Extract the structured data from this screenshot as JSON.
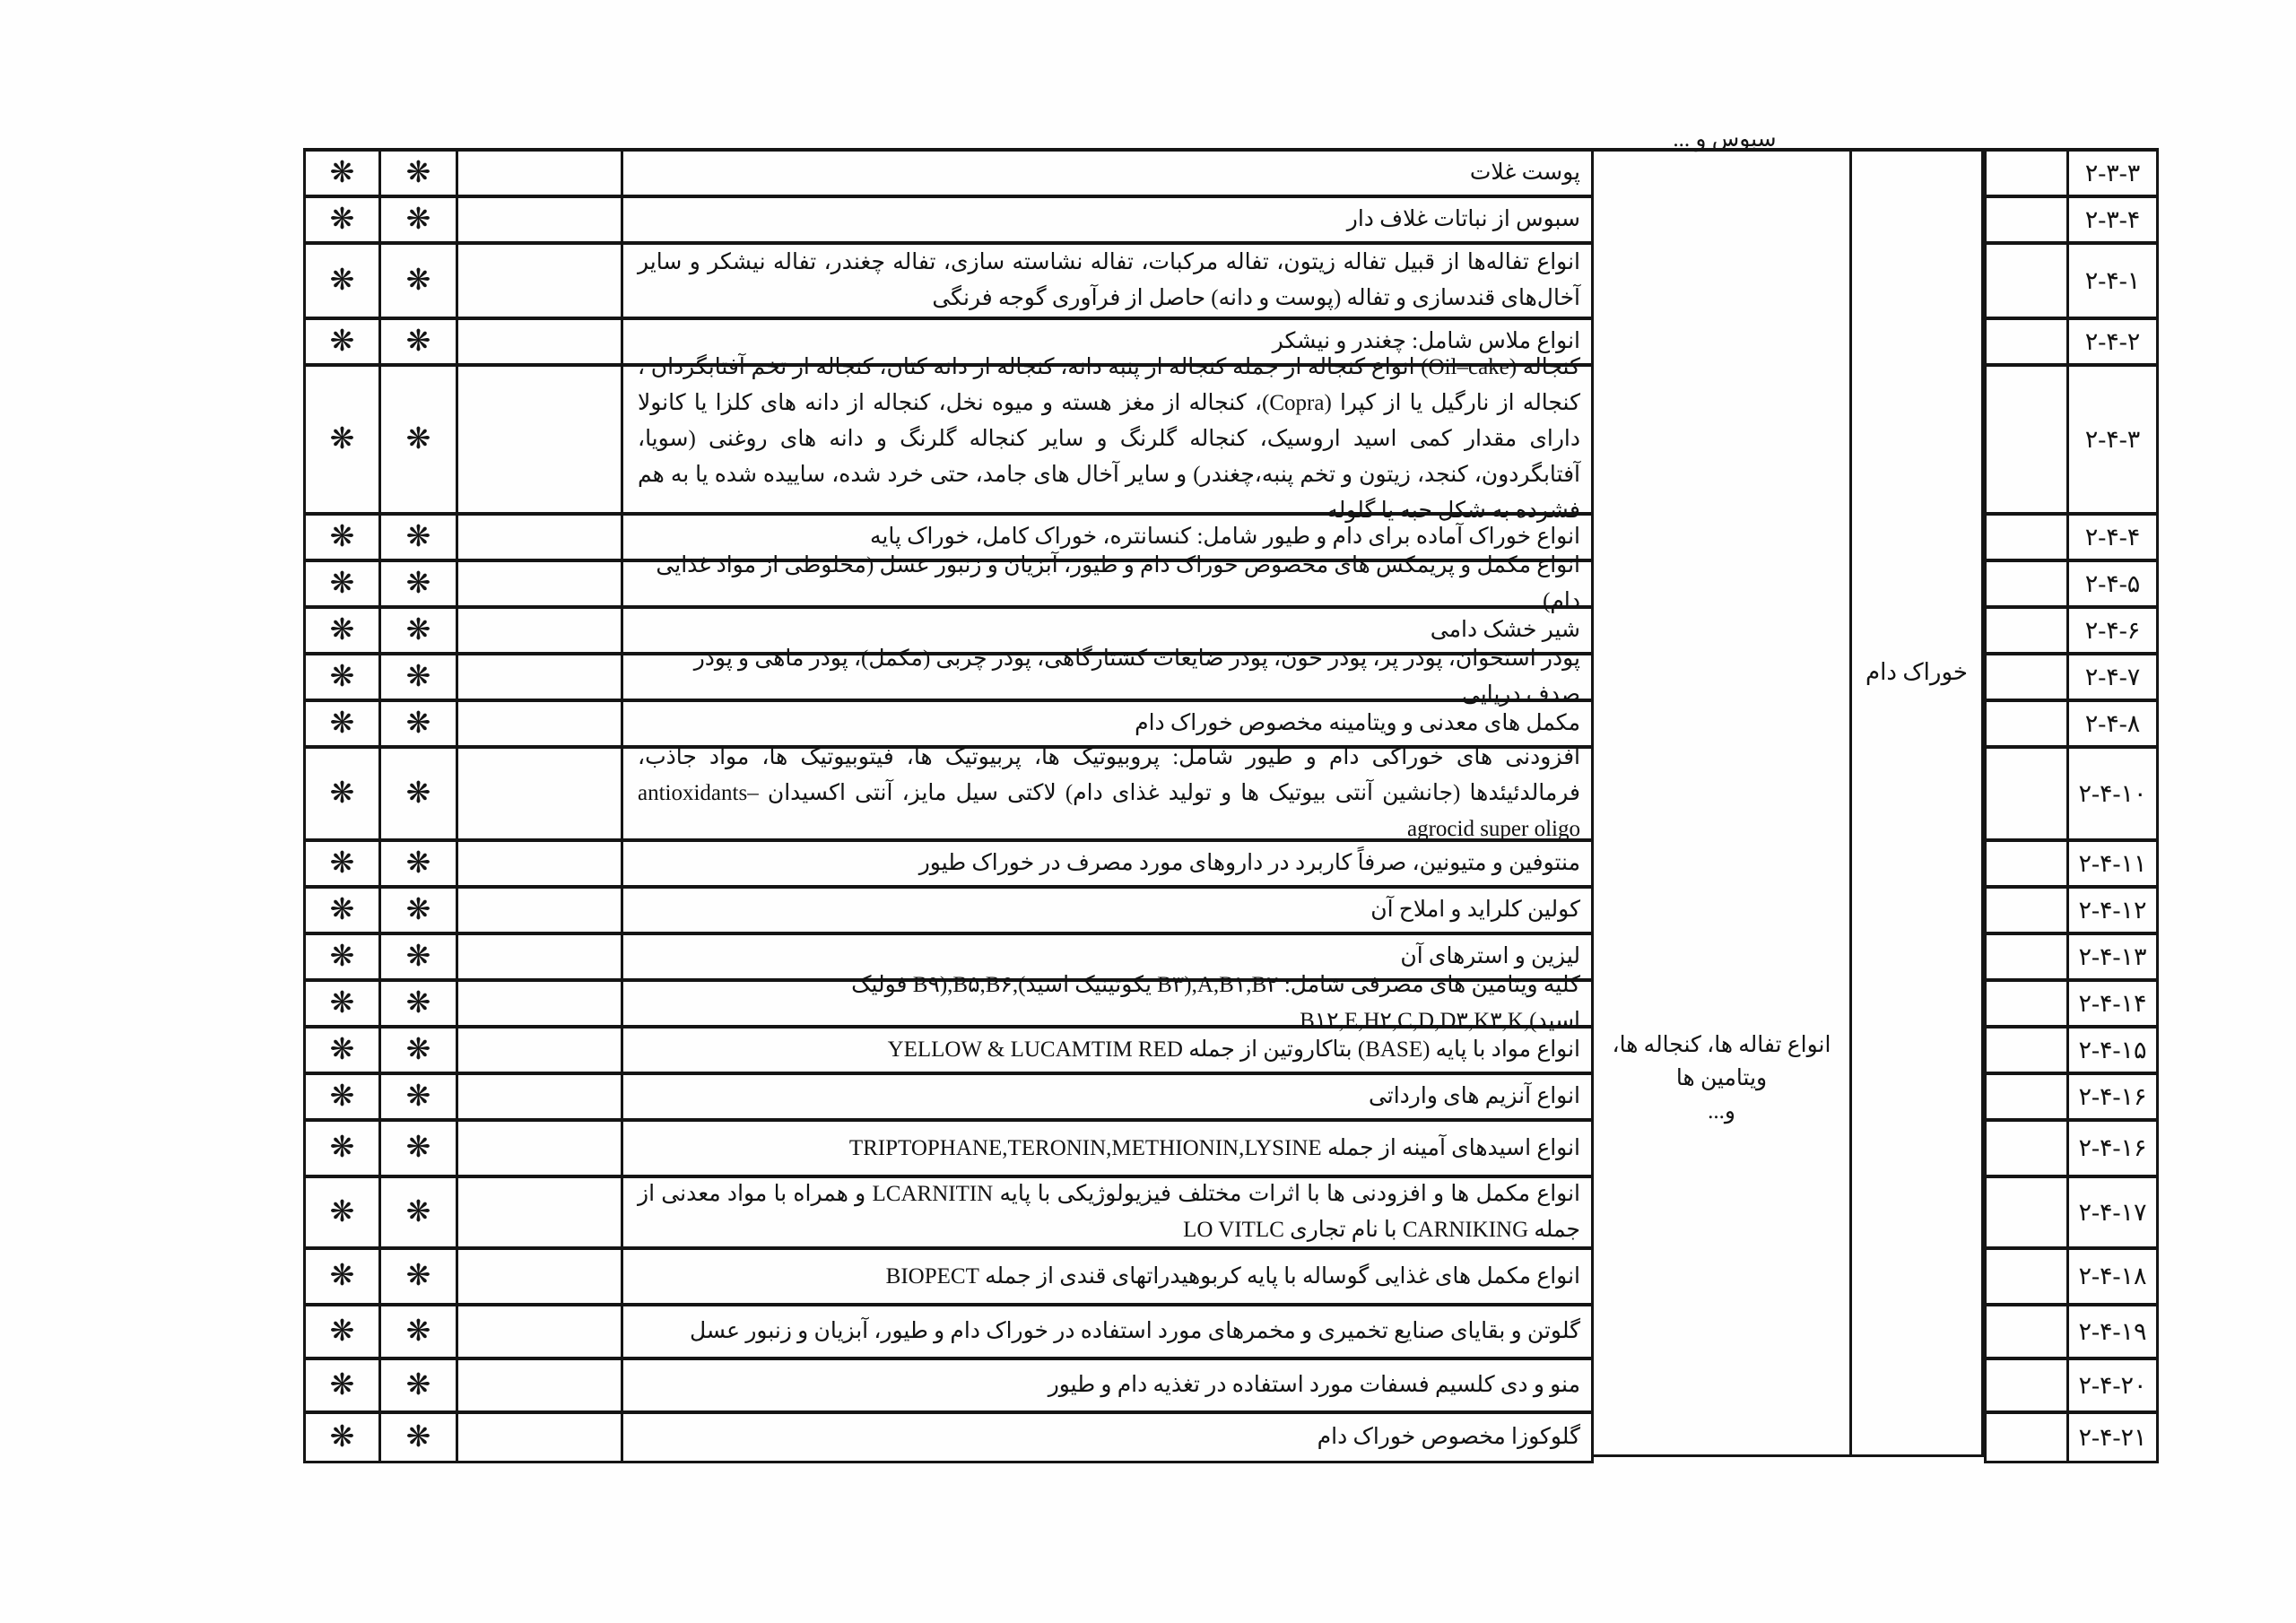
{
  "document": {
    "language": "fa",
    "kind": "scanned-regulation-table",
    "ink_color": "#121212",
    "line_color": "#151515",
    "background": "#fefefe"
  },
  "category_labels": {
    "top_fragment_cut": "سبوس و ...",
    "middle_group_line1": "انواع تفاله ها، کنجاله ها، ویتامین ها",
    "middle_group_line2": "و...",
    "right_group": "خوراک دام"
  },
  "marks": {
    "star_symbol": "❋"
  },
  "rows": [
    {
      "code": "۲-۳-۳",
      "h": 52,
      "single": true,
      "text": "پوست غلات"
    },
    {
      "code": "۲-۳-۴",
      "h": 52,
      "single": true,
      "text": "سبوس از نباتات غلاف دار"
    },
    {
      "code": "۲-۴-۱",
      "h": 84,
      "single": false,
      "text": "انواع تفاله‌ها از قبیل تفاله زیتون، تفاله مرکبات، تفاله نشاسته سازی، تفاله چغندر، تفاله نیشکر و سایر آخال‌های قندسازی و تفاله (پوست و دانه) حاصل از فرآوری گوجه فرنگی"
    },
    {
      "code": "۲-۴-۲",
      "h": 52,
      "single": true,
      "text": "انواع ملاس شامل: چغندر و نیشکر"
    },
    {
      "code": "۲-۴-۳",
      "h": 166,
      "single": false,
      "text": "کنجاله (Oil–cake) انواع کنجاله از جمله کنجاله از پنبه دانه، کنجاله از دانه کتان، کنجاله از تخم آفتابگردان ، کنجاله از نارگیل یا از کپرا (Copra)، کنجاله از مغز هسته و میوه نخل، کنجاله از دانه های کلزا یا کانولا دارای مقدار کمی اسید اروسیک،  کنجاله گلرنگ و سایر کنجاله گلرنگ و دانه های روغنی (سویا، آفتابگردون، کنجد، زیتون و تخم پنبه،چغندر) و سایر آخال های جامد، حتی خرد شده، ساییده شده  یا به هم فشرده به شکل حبه یا گلوله"
    },
    {
      "code": "۲-۴-۴",
      "h": 52,
      "single": true,
      "text": "انواع خوراک آماده برای دام و طیور شامل: کنسانتره، خوراک کامل، خوراک پایه"
    },
    {
      "code": "۲-۴-۵",
      "h": 52,
      "single": true,
      "text": "انواع مکمل و پریمکس های مخصوص خوراک دام و طیور، آبزیان و زنبور عسل (مخلوطی از مواد غذایی دام)"
    },
    {
      "code": "۲-۴-۶",
      "h": 52,
      "single": true,
      "text": "شیر خشک دامی"
    },
    {
      "code": "۲-۴-۷",
      "h": 52,
      "single": true,
      "text": "پودر استخوان، پودر پر، پودر خون، پودر ضایعات کشتارگاهی، پودر چربی (مکمل)، پودر ماهی و پودر صدف دریایی"
    },
    {
      "code": "۲-۴-۸",
      "h": 52,
      "single": true,
      "text": "مکمل های معدنی و ویتامینه مخصوص خوراک دام"
    },
    {
      "code": "۲-۴-۱۰",
      "h": 104,
      "single": false,
      "text": "افزودنی های خوراکی دام و طیور شامل: پروبیوتیک ها، پربیوتیک ها، فیتوبیوتیک ها، مواد جاذب، فرمالدئیئدها (جانشین آنتی بیوتیک ها و تولید غذای دام) لاکتی سیل مایز، آنتی اکسیدان antioxidants– agrocid super oligo"
    },
    {
      "code": "۲-۴-۱۱",
      "h": 52,
      "single": true,
      "text": "منتوفین و متیونین، صرفاً کاربرد در داروهای مورد مصرف در خوراک طیور"
    },
    {
      "code": "۲-۴-۱۲",
      "h": 52,
      "single": true,
      "text": "کولین کلراید و املاح آن"
    },
    {
      "code": "۲-۴-۱۳",
      "h": 52,
      "single": true,
      "text": "لیزین و استرهای آن"
    },
    {
      "code": "۲-۴-۱۴",
      "h": 52,
      "single": true,
      "text": "کلیه ویتامین های مصرفی شامل: A,B۱,B۲,(B۳ یکوتینیک اسید),B۵,B۶,(B۹ فولیک اسید),B۱۲,E,H۲,C,D,D۳,K۳,K"
    },
    {
      "code": "۲-۴-۱۵",
      "h": 52,
      "single": true,
      "text": "انواع مواد با پایه (BASE) بتاکاروتین از جمله YELLOW & LUCAMTIM RED"
    },
    {
      "code": "۲-۴-۱۶",
      "h": 52,
      "single": true,
      "text": "انواع آنزیم های وارداتی"
    },
    {
      "code": "۲-۴-۱۶",
      "h": 63,
      "single": true,
      "text": "انواع اسیدهای آمینه از جمله TRIPTOPHANE,TERONIN,METHIONIN,LYSINE"
    },
    {
      "code": "۲-۴-۱۷",
      "h": 80,
      "single": false,
      "text": "انواع مکمل ها و افزودنی ها با اثرات مختلف فیزیولوژیکی با پایه LCARNITIN و همراه با مواد معدنی از جمله CARNIKING با نام تجاری LO VITLC"
    },
    {
      "code": "۲-۴-۱۸",
      "h": 63,
      "single": true,
      "text": "انواع مکمل های غذایی گوساله با پایه کربوهیدراتهای قندی از جمله BIOPECT"
    },
    {
      "code": "۲-۴-۱۹",
      "h": 60,
      "single": true,
      "text": "گلوتن و بقایای صنایع تخمیری و مخمرهای مورد استفاده در خوراک دام و طیور، آبزیان و زنبور عسل"
    },
    {
      "code": "۲-۴-۲۰",
      "h": 60,
      "single": true,
      "text": "منو و دی کلسیم فسفات مورد استفاده در تغذیه دام و طیور"
    },
    {
      "code": "۲-۴-۲۱",
      "h": 52,
      "single": true,
      "text": "گلوکوزا مخصوص خوراک دام"
    }
  ]
}
